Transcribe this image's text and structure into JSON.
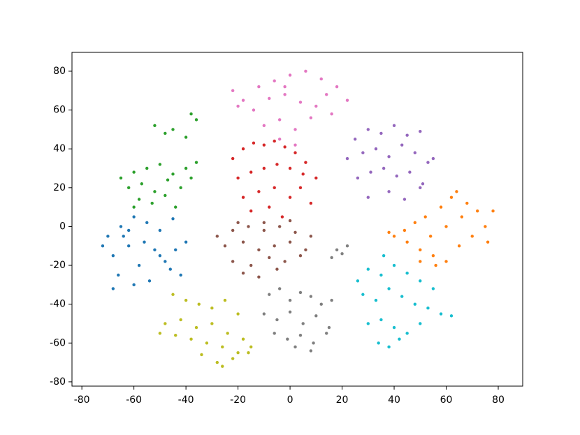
{
  "chart_data": {
    "type": "scatter",
    "xlim": [
      -83.8,
      89.4
    ],
    "ylim": [
      -82.2,
      89.7
    ],
    "xticks": [
      -80,
      -60,
      -40,
      -20,
      0,
      20,
      40,
      60,
      80
    ],
    "yticks": [
      -80,
      -60,
      -40,
      -20,
      0,
      20,
      40,
      60,
      80
    ],
    "series": [
      {
        "color": "#1f77b4",
        "x": [
          -70,
          -65,
          -60,
          -55,
          -50,
          -45,
          -40,
          -68,
          -62,
          -58,
          -52,
          -48,
          -42,
          -66,
          -60,
          -54,
          -46,
          -72,
          -64,
          -56,
          -50,
          -44,
          -62,
          -68
        ],
        "y": [
          -5,
          0,
          5,
          2,
          -2,
          4,
          -8,
          -15,
          -10,
          -20,
          -12,
          -18,
          -25,
          -25,
          -30,
          -28,
          -22,
          -10,
          -5,
          -8,
          -15,
          -12,
          -2,
          -32
        ]
      },
      {
        "color": "#ff7f0e",
        "x": [
          40,
          45,
          50,
          55,
          60,
          65,
          70,
          75,
          78,
          48,
          52,
          58,
          62,
          68,
          72,
          44,
          54,
          60,
          66,
          38,
          50,
          56,
          64,
          76
        ],
        "y": [
          -5,
          -8,
          -12,
          -15,
          -18,
          -10,
          -5,
          0,
          8,
          2,
          5,
          10,
          15,
          12,
          8,
          -2,
          -5,
          0,
          5,
          -3,
          -18,
          -20,
          18,
          -8
        ]
      },
      {
        "color": "#2ca02c",
        "x": [
          -52,
          -48,
          -45,
          -38,
          -36,
          -40,
          -65,
          -60,
          -55,
          -50,
          -45,
          -40,
          -36,
          -62,
          -57,
          -52,
          -47,
          -42,
          -58,
          -53,
          -48,
          -44,
          -60,
          -38
        ],
        "y": [
          52,
          48,
          50,
          58,
          55,
          46,
          25,
          28,
          30,
          32,
          27,
          30,
          33,
          20,
          22,
          18,
          24,
          20,
          14,
          12,
          16,
          10,
          10,
          25
        ]
      },
      {
        "color": "#d62728",
        "x": [
          -22,
          -18,
          -14,
          -10,
          -6,
          -2,
          2,
          6,
          10,
          -20,
          -15,
          -10,
          -5,
          0,
          5,
          -18,
          -12,
          -6,
          0,
          8,
          -15,
          -8,
          -3,
          4
        ],
        "y": [
          35,
          40,
          43,
          42,
          44,
          41,
          38,
          33,
          25,
          25,
          28,
          30,
          32,
          30,
          27,
          15,
          18,
          20,
          15,
          12,
          8,
          10,
          5,
          20
        ]
      },
      {
        "color": "#9467bd",
        "x": [
          25,
          30,
          35,
          40,
          45,
          50,
          55,
          22,
          28,
          33,
          38,
          43,
          48,
          53,
          26,
          31,
          36,
          41,
          46,
          51,
          30,
          38,
          44,
          50
        ],
        "y": [
          45,
          50,
          48,
          52,
          47,
          49,
          35,
          35,
          38,
          40,
          36,
          42,
          38,
          33,
          25,
          28,
          30,
          26,
          28,
          22,
          15,
          18,
          14,
          20
        ]
      },
      {
        "color": "#8c564b",
        "x": [
          -28,
          -22,
          -16,
          -10,
          -4,
          2,
          8,
          -25,
          -18,
          -12,
          -6,
          0,
          6,
          -22,
          -15,
          -8,
          -2,
          4,
          -18,
          -12,
          -5,
          -20,
          -10,
          0
        ],
        "y": [
          -5,
          -2,
          0,
          2,
          0,
          -3,
          -5,
          -10,
          -8,
          -12,
          -10,
          -8,
          -12,
          -18,
          -20,
          -16,
          -18,
          -15,
          -24,
          -26,
          -22,
          2,
          -2,
          3
        ]
      },
      {
        "color": "#e377c2",
        "x": [
          -22,
          -18,
          -12,
          -6,
          0,
          6,
          12,
          18,
          22,
          -20,
          -14,
          -8,
          -2,
          4,
          10,
          16,
          -10,
          -4,
          2,
          8,
          -4,
          2,
          14,
          -2
        ],
        "y": [
          70,
          65,
          72,
          75,
          78,
          80,
          76,
          72,
          65,
          62,
          60,
          66,
          68,
          64,
          62,
          58,
          52,
          55,
          50,
          56,
          45,
          42,
          68,
          72
        ]
      },
      {
        "color": "#7f7f7f",
        "x": [
          -8,
          -4,
          0,
          4,
          8,
          12,
          16,
          -10,
          -5,
          0,
          5,
          10,
          15,
          -6,
          -1,
          4,
          9,
          14,
          2,
          8,
          18,
          22,
          16,
          20
        ],
        "y": [
          -35,
          -32,
          -38,
          -34,
          -36,
          -40,
          -38,
          -45,
          -48,
          -44,
          -50,
          -46,
          -52,
          -55,
          -58,
          -56,
          -60,
          -55,
          -62,
          -64,
          -12,
          -10,
          -16,
          -14
        ]
      },
      {
        "color": "#bcbd22",
        "x": [
          -45,
          -40,
          -35,
          -30,
          -25,
          -20,
          -48,
          -42,
          -36,
          -30,
          -24,
          -18,
          -15,
          -44,
          -38,
          -32,
          -26,
          -20,
          -34,
          -28,
          -22,
          -50,
          -16,
          -26
        ],
        "y": [
          -35,
          -38,
          -40,
          -42,
          -38,
          -45,
          -50,
          -48,
          -52,
          -50,
          -55,
          -58,
          -62,
          -56,
          -58,
          -60,
          -62,
          -65,
          -66,
          -70,
          -68,
          -55,
          -65,
          -72
        ]
      },
      {
        "color": "#17becf",
        "x": [
          30,
          35,
          40,
          45,
          50,
          55,
          28,
          33,
          38,
          43,
          48,
          53,
          58,
          62,
          30,
          35,
          40,
          45,
          50,
          34,
          38,
          42,
          26,
          36
        ],
        "y": [
          -22,
          -25,
          -20,
          -24,
          -28,
          -32,
          -35,
          -38,
          -32,
          -36,
          -40,
          -42,
          -45,
          -46,
          -50,
          -48,
          -52,
          -55,
          -50,
          -60,
          -62,
          -58,
          -28,
          -15
        ]
      }
    ]
  }
}
